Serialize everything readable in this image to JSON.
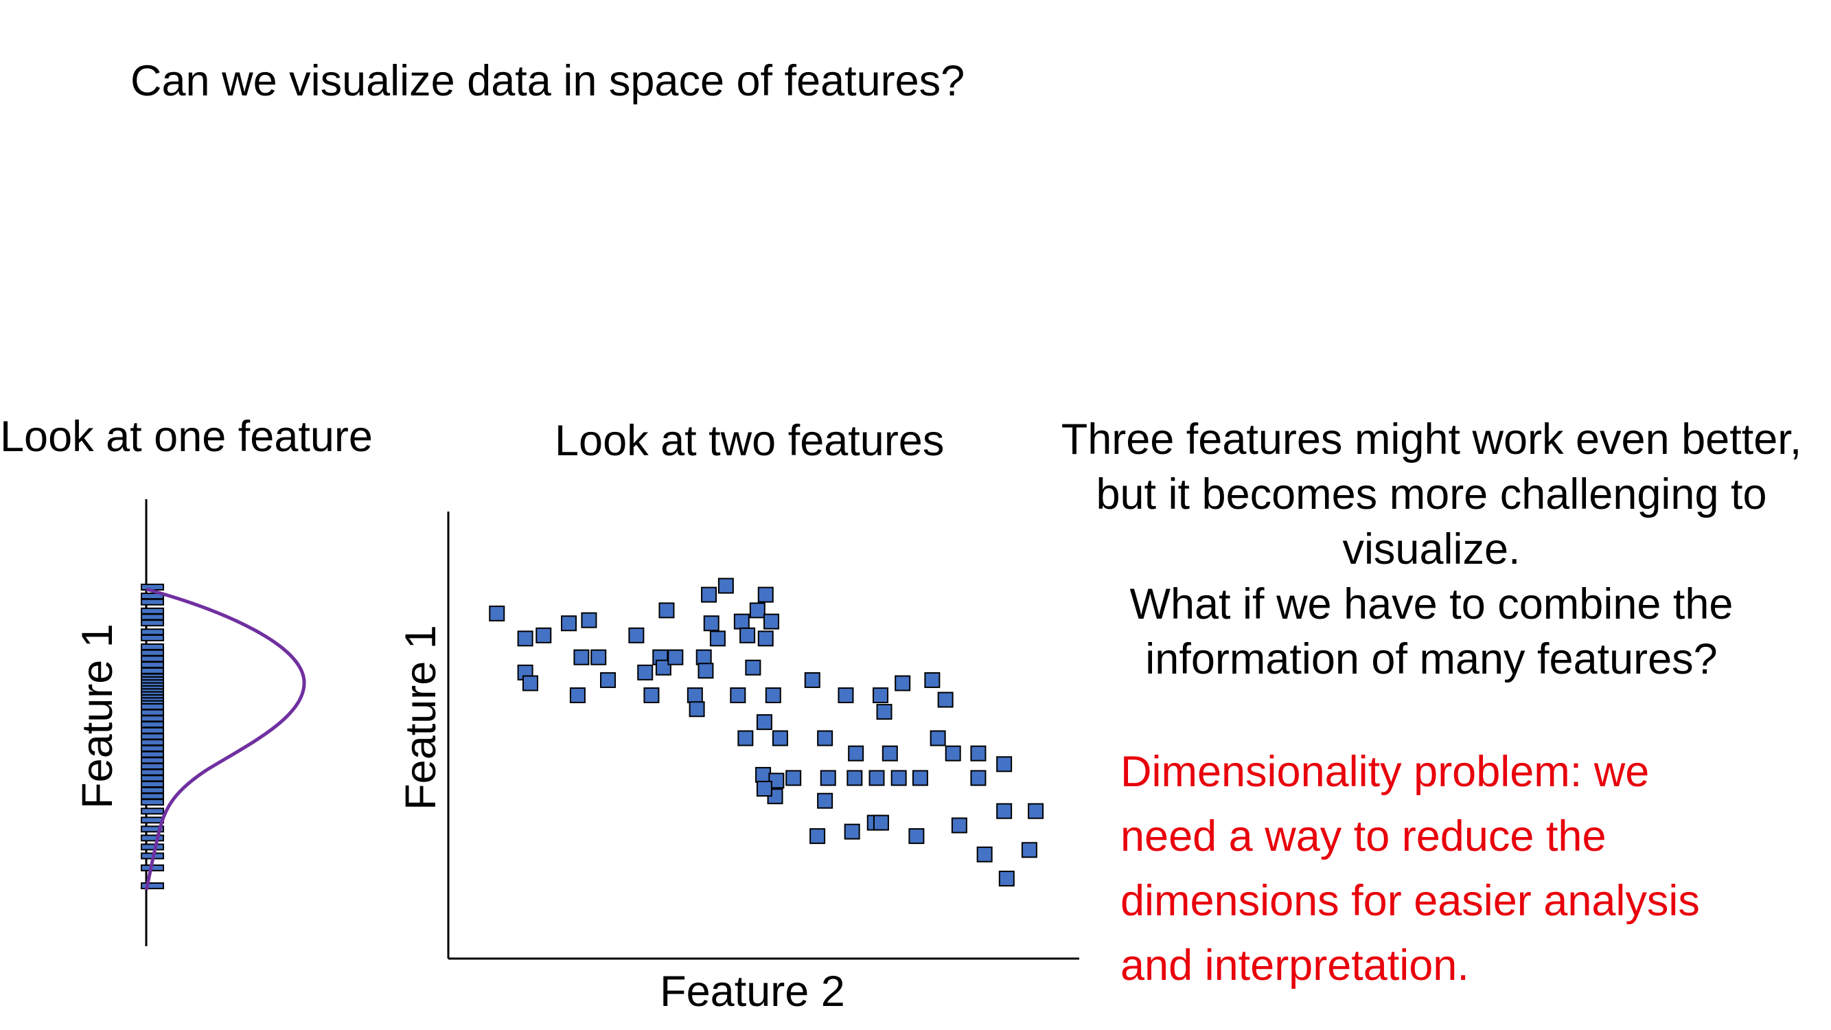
{
  "slide": {
    "title": "Can we visualize data in space of features?",
    "one_feature": {
      "heading": "Look at one feature",
      "axis_label": "Feature 1",
      "points": [
        0.0,
        0.03,
        0.05,
        0.08,
        0.1,
        0.12,
        0.15,
        0.17,
        0.2,
        0.22,
        0.24,
        0.26,
        0.28,
        0.3,
        0.31,
        0.32,
        0.33,
        0.34,
        0.35,
        0.36,
        0.37,
        0.38,
        0.39,
        0.4,
        0.42,
        0.44,
        0.46,
        0.48,
        0.5,
        0.52,
        0.54,
        0.56,
        0.58,
        0.6,
        0.62,
        0.64,
        0.66,
        0.68,
        0.7,
        0.72,
        0.75,
        0.78,
        0.81,
        0.84,
        0.87,
        0.9,
        0.94,
        1.0
      ],
      "curve_color": "#7030a0",
      "marker_color": "#4472c4"
    },
    "two_features": {
      "heading": "Look at two features",
      "x_label": "Feature 2",
      "y_label": "Feature 1",
      "marker_color": "#4472c4",
      "points": [
        [
          0.077,
          0.772
        ],
        [
          0.122,
          0.716
        ],
        [
          0.151,
          0.723
        ],
        [
          0.191,
          0.75
        ],
        [
          0.223,
          0.757
        ],
        [
          0.122,
          0.64
        ],
        [
          0.13,
          0.616
        ],
        [
          0.205,
          0.589
        ],
        [
          0.211,
          0.674
        ],
        [
          0.238,
          0.674
        ],
        [
          0.253,
          0.623
        ],
        [
          0.298,
          0.723
        ],
        [
          0.312,
          0.64
        ],
        [
          0.322,
          0.589
        ],
        [
          0.336,
          0.674
        ],
        [
          0.341,
          0.651
        ],
        [
          0.346,
          0.779
        ],
        [
          0.36,
          0.674
        ],
        [
          0.391,
          0.589
        ],
        [
          0.394,
          0.558
        ],
        [
          0.405,
          0.674
        ],
        [
          0.408,
          0.644
        ],
        [
          0.413,
          0.814
        ],
        [
          0.417,
          0.75
        ],
        [
          0.427,
          0.716
        ],
        [
          0.44,
          0.834
        ],
        [
          0.459,
          0.589
        ],
        [
          0.465,
          0.754
        ],
        [
          0.474,
          0.723
        ],
        [
          0.483,
          0.651
        ],
        [
          0.49,
          0.779
        ],
        [
          0.503,
          0.814
        ],
        [
          0.503,
          0.716
        ],
        [
          0.512,
          0.754
        ],
        [
          0.515,
          0.589
        ],
        [
          0.471,
          0.493
        ],
        [
          0.501,
          0.529
        ],
        [
          0.526,
          0.493
        ],
        [
          0.499,
          0.411
        ],
        [
          0.52,
          0.398
        ],
        [
          0.547,
          0.404
        ],
        [
          0.518,
          0.363
        ],
        [
          0.501,
          0.38
        ],
        [
          0.577,
          0.623
        ],
        [
          0.585,
          0.274
        ],
        [
          0.597,
          0.353
        ],
        [
          0.597,
          0.493
        ],
        [
          0.602,
          0.404
        ],
        [
          0.63,
          0.589
        ],
        [
          0.64,
          0.284
        ],
        [
          0.644,
          0.404
        ],
        [
          0.646,
          0.459
        ],
        [
          0.676,
          0.304
        ],
        [
          0.685,
          0.589
        ],
        [
          0.691,
          0.552
        ],
        [
          0.679,
          0.404
        ],
        [
          0.686,
          0.304
        ],
        [
          0.7,
          0.459
        ],
        [
          0.714,
          0.404
        ],
        [
          0.72,
          0.616
        ],
        [
          0.742,
          0.274
        ],
        [
          0.748,
          0.404
        ],
        [
          0.767,
          0.623
        ],
        [
          0.776,
          0.493
        ],
        [
          0.788,
          0.579
        ],
        [
          0.8,
          0.459
        ],
        [
          0.81,
          0.298
        ],
        [
          0.84,
          0.404
        ],
        [
          0.84,
          0.459
        ],
        [
          0.85,
          0.233
        ],
        [
          0.881,
          0.435
        ],
        [
          0.885,
          0.179
        ],
        [
          0.881,
          0.33
        ],
        [
          0.921,
          0.243
        ],
        [
          0.931,
          0.33
        ]
      ]
    },
    "three_features": [
      "Three features might work even better,",
      "but it becomes more challenging to",
      "visualize.",
      "What if we have to combine the",
      "information of many features?"
    ],
    "dimensionality": [
      "Dimensionality problem: we",
      "need a way to reduce the",
      "dimensions for easier analysis",
      "and interpretation."
    ]
  }
}
